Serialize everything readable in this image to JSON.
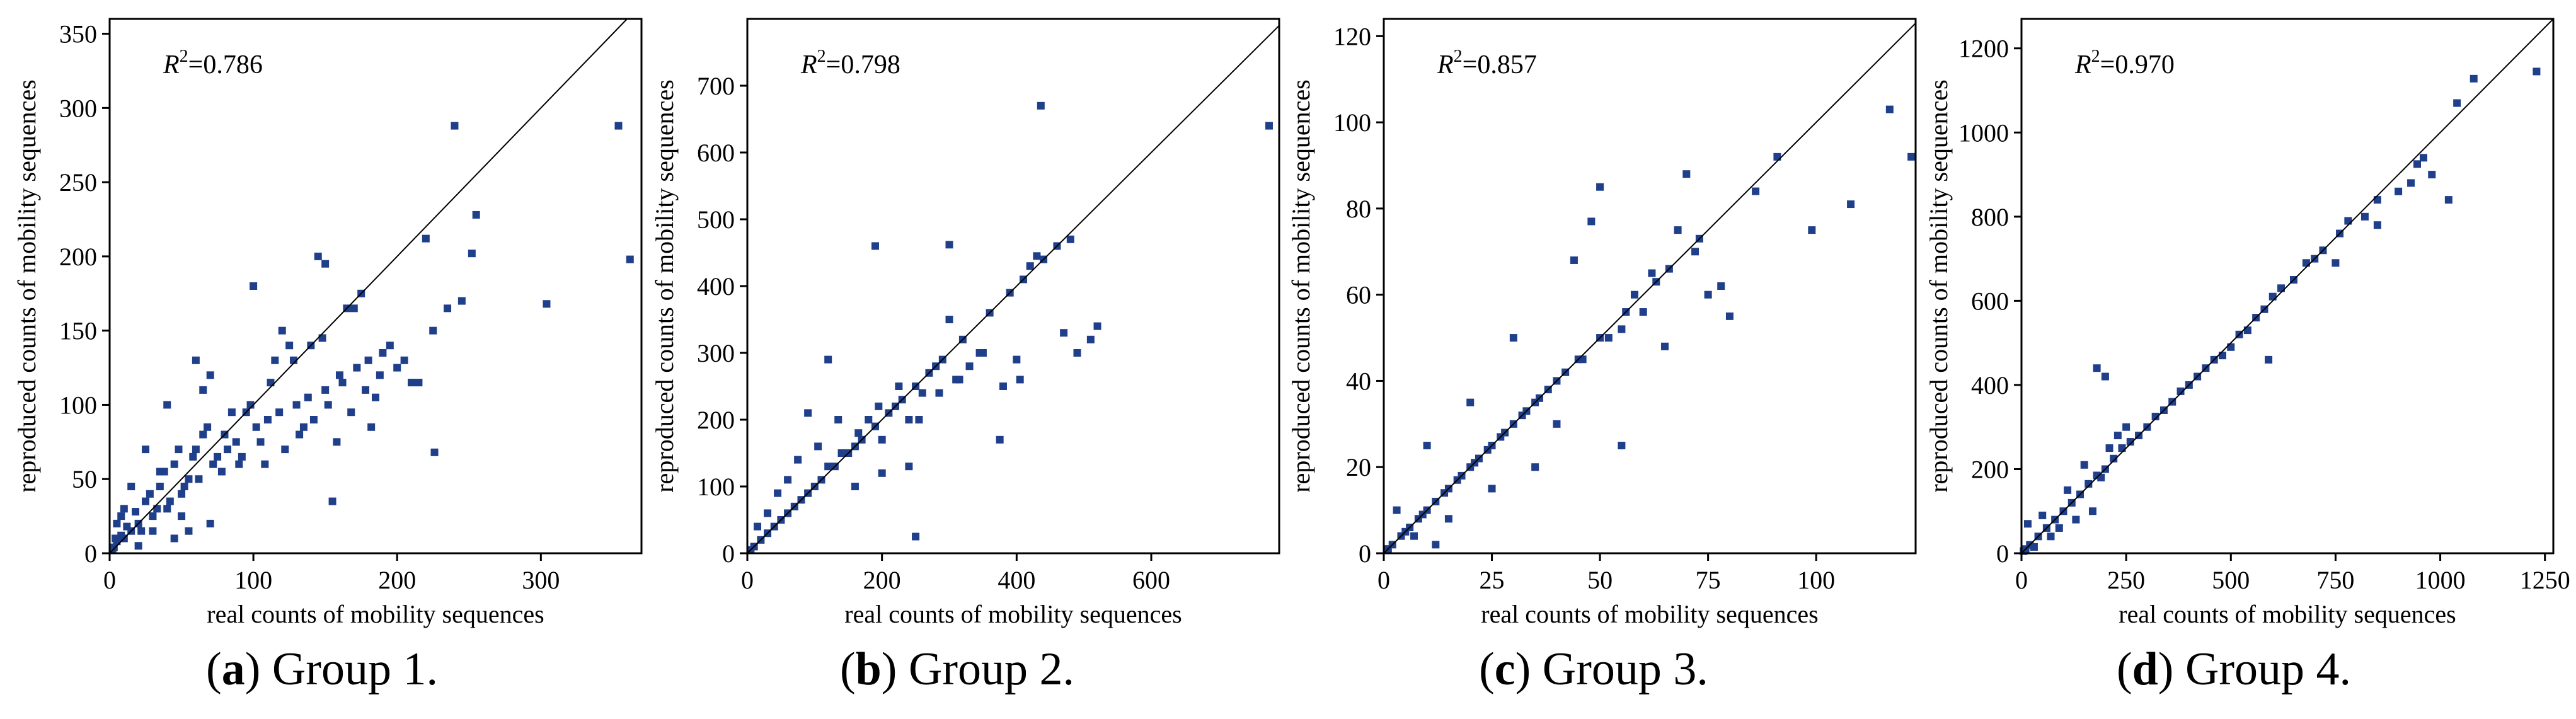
{
  "figure": {
    "panels": [
      {
        "caption_letter": "a",
        "caption_text": "Group 1."
      },
      {
        "caption_letter": "b",
        "caption_text": "Group 2."
      },
      {
        "caption_letter": "c",
        "caption_text": "Group 3."
      },
      {
        "caption_letter": "d",
        "caption_text": "Group 4."
      }
    ]
  },
  "colors": {
    "marker": "#1f3f8a",
    "axis": "#000000",
    "diagonal": "#000000"
  },
  "chart_data": [
    {
      "type": "scatter",
      "title": "",
      "xlabel": "real counts of mobility sequences",
      "ylabel": "reproduced counts of mobility sequences",
      "annotation": {
        "symbol": "R",
        "superscript": "2",
        "value": "=0.786"
      },
      "xlim": [
        0,
        370
      ],
      "ylim": [
        0,
        360
      ],
      "xticks": [
        0,
        100,
        200,
        300
      ],
      "xtick_labels": [
        "0",
        "100",
        "200",
        "300"
      ],
      "yticks": [
        0,
        50,
        100,
        150,
        200,
        250,
        300,
        350
      ],
      "ytick_labels": [
        "0",
        "50",
        "100",
        "150",
        "200",
        "250",
        "300",
        "350"
      ],
      "identity_line": true,
      "x": [
        354,
        362,
        240,
        255,
        304,
        252,
        220,
        245,
        175,
        145,
        150,
        165,
        226,
        100,
        120,
        140,
        160,
        180,
        150,
        110,
        130,
        95,
        80,
        60,
        70,
        200,
        190,
        210,
        185,
        135,
        125,
        105,
        90,
        85,
        75,
        65,
        55,
        50,
        45,
        40,
        35,
        30,
        25,
        20,
        15,
        10,
        8,
        5,
        3,
        2,
        12,
        18,
        22,
        28,
        33,
        38,
        42,
        48,
        52,
        58,
        62,
        68,
        72,
        78,
        82,
        88,
        92,
        98,
        102,
        108,
        112,
        118,
        122,
        128,
        132,
        138,
        142,
        148,
        152,
        158,
        162,
        168,
        172,
        178,
        182,
        188,
        195,
        205,
        215,
        225,
        235,
        155,
        170,
        115,
        60,
        40,
        25,
        15,
        8,
        4,
        30,
        50,
        20,
        10,
        5,
        70,
        45,
        35,
        55,
        65
      ],
      "y": [
        288,
        198,
        288,
        228,
        168,
        202,
        212,
        170,
        175,
        200,
        195,
        165,
        68,
        180,
        150,
        140,
        120,
        130,
        110,
        90,
        100,
        95,
        80,
        70,
        120,
        125,
        135,
        115,
        105,
        85,
        140,
        75,
        60,
        95,
        65,
        110,
        50,
        40,
        60,
        30,
        45,
        25,
        35,
        20,
        15,
        10,
        12,
        8,
        4,
        2,
        18,
        28,
        15,
        40,
        30,
        55,
        35,
        70,
        45,
        65,
        50,
        85,
        60,
        55,
        70,
        75,
        65,
        100,
        85,
        60,
        115,
        95,
        70,
        130,
        80,
        105,
        90,
        145,
        100,
        75,
        115,
        95,
        125,
        110,
        85,
        120,
        140,
        130,
        115,
        150,
        165,
        35,
        165,
        130,
        130,
        100,
        70,
        45,
        25,
        10,
        15,
        25,
        5,
        30,
        20,
        20,
        10,
        55,
        15,
        80
      ]
    },
    {
      "type": "scatter",
      "title": "",
      "xlabel": "real counts of mobility sequences",
      "ylabel": "reproduced counts of mobility sequences",
      "annotation": {
        "symbol": "R",
        "superscript": "2",
        "value": "=0.798"
      },
      "xlim": [
        0,
        790
      ],
      "ylim": [
        0,
        800
      ],
      "xticks": [
        0,
        200,
        400,
        600
      ],
      "xtick_labels": [
        "0",
        "200",
        "400",
        "600"
      ],
      "yticks": [
        0,
        100,
        200,
        300,
        400,
        500,
        600,
        700
      ],
      "ytick_labels": [
        "0",
        "100",
        "200",
        "300",
        "400",
        "500",
        "600",
        "700"
      ],
      "identity_line": true,
      "x": [
        436,
        775,
        480,
        300,
        190,
        420,
        430,
        520,
        510,
        470,
        490,
        400,
        380,
        350,
        330,
        310,
        280,
        260,
        240,
        220,
        200,
        180,
        160,
        140,
        120,
        100,
        80,
        60,
        40,
        20,
        10,
        5,
        30,
        50,
        70,
        90,
        110,
        130,
        150,
        170,
        190,
        210,
        230,
        250,
        270,
        290,
        320,
        360,
        390,
        410,
        440,
        460,
        250,
        300,
        120,
        90,
        60,
        30,
        15,
        45,
        75,
        105,
        135,
        165,
        195,
        225,
        255,
        285,
        315,
        345,
        375,
        405,
        240,
        200,
        160
      ],
      "y": [
        670,
        640,
        470,
        462,
        460,
        430,
        445,
        340,
        320,
        330,
        300,
        290,
        250,
        300,
        280,
        260,
        280,
        240,
        200,
        220,
        170,
        200,
        160,
        150,
        130,
        100,
        80,
        60,
        40,
        20,
        10,
        5,
        30,
        50,
        70,
        90,
        110,
        130,
        150,
        170,
        190,
        210,
        230,
        250,
        270,
        290,
        320,
        360,
        390,
        410,
        440,
        460,
        25,
        350,
        290,
        210,
        110,
        60,
        40,
        90,
        140,
        160,
        200,
        180,
        220,
        250,
        200,
        240,
        260,
        300,
        170,
        260,
        130,
        120,
        100
      ]
    },
    {
      "type": "scatter",
      "title": "",
      "xlabel": "real counts of mobility sequences",
      "ylabel": "reproduced counts of mobility sequences",
      "annotation": {
        "symbol": "R",
        "superscript": "2",
        "value": "=0.857"
      },
      "xlim": [
        0,
        123
      ],
      "ylim": [
        0,
        124
      ],
      "xticks": [
        0,
        25,
        50,
        75,
        100
      ],
      "xtick_labels": [
        "0",
        "25",
        "50",
        "75",
        "100"
      ],
      "yticks": [
        0,
        20,
        40,
        60,
        80,
        100,
        120
      ],
      "ytick_labels": [
        "0",
        "20",
        "40",
        "60",
        "80",
        "100",
        "120"
      ],
      "identity_line": true,
      "x": [
        117,
        122,
        91,
        99,
        108,
        86,
        70,
        50,
        48,
        44,
        60,
        65,
        75,
        78,
        80,
        72,
        68,
        62,
        58,
        55,
        52,
        46,
        42,
        38,
        35,
        32,
        28,
        25,
        22,
        20,
        18,
        15,
        12,
        10,
        8,
        6,
        4,
        2,
        1,
        5,
        9,
        14,
        17,
        21,
        24,
        27,
        30,
        33,
        36,
        40,
        45,
        50,
        56,
        63,
        66,
        73,
        30,
        20,
        10,
        15,
        25,
        35,
        55,
        40,
        12,
        7,
        3
      ],
      "y": [
        103,
        92,
        92,
        75,
        81,
        84,
        88,
        85,
        77,
        68,
        56,
        48,
        60,
        62,
        55,
        70,
        75,
        65,
        60,
        52,
        50,
        45,
        42,
        38,
        35,
        32,
        28,
        25,
        22,
        20,
        18,
        15,
        12,
        10,
        8,
        6,
        4,
        2,
        1,
        5,
        9,
        14,
        17,
        21,
        24,
        27,
        30,
        33,
        36,
        40,
        45,
        50,
        56,
        63,
        66,
        73,
        50,
        35,
        25,
        8,
        15,
        20,
        25,
        30,
        2,
        4,
        10
      ]
    },
    {
      "type": "scatter",
      "title": "",
      "xlabel": "real counts of mobility sequences",
      "ylabel": "reproduced counts of mobility sequences",
      "annotation": {
        "symbol": "R",
        "superscript": "2",
        "value": "=0.970"
      },
      "xlim": [
        0,
        1270
      ],
      "ylim": [
        0,
        1270
      ],
      "xticks": [
        0,
        250,
        500,
        750,
        1000,
        1250
      ],
      "xtick_labels": [
        "0",
        "250",
        "500",
        "750",
        "1000",
        "1250"
      ],
      "yticks": [
        0,
        200,
        400,
        600,
        800,
        1000,
        1200
      ],
      "ytick_labels": [
        "0",
        "200",
        "400",
        "600",
        "800",
        "1000",
        "1200"
      ],
      "identity_line": true,
      "x": [
        1230,
        1080,
        1040,
        1020,
        960,
        945,
        930,
        980,
        900,
        850,
        820,
        780,
        760,
        720,
        700,
        680,
        650,
        620,
        600,
        580,
        560,
        540,
        520,
        500,
        480,
        460,
        440,
        420,
        400,
        380,
        360,
        340,
        320,
        300,
        280,
        260,
        240,
        220,
        200,
        180,
        160,
        140,
        120,
        100,
        80,
        60,
        40,
        20,
        10,
        5,
        590,
        750,
        850,
        50,
        70,
        90,
        110,
        130,
        150,
        170,
        190,
        210,
        230,
        250,
        30,
        15,
        200,
        180
      ],
      "y": [
        1145,
        1128,
        1070,
        840,
        940,
        925,
        880,
        900,
        860,
        840,
        800,
        790,
        760,
        720,
        700,
        690,
        650,
        630,
        610,
        580,
        560,
        530,
        520,
        490,
        470,
        460,
        440,
        420,
        400,
        385,
        360,
        340,
        325,
        300,
        280,
        265,
        250,
        225,
        200,
        185,
        165,
        140,
        120,
        100,
        80,
        60,
        40,
        20,
        10,
        5,
        460,
        690,
        780,
        90,
        40,
        60,
        150,
        80,
        210,
        100,
        180,
        250,
        280,
        300,
        15,
        70,
        420,
        440
      ]
    }
  ]
}
